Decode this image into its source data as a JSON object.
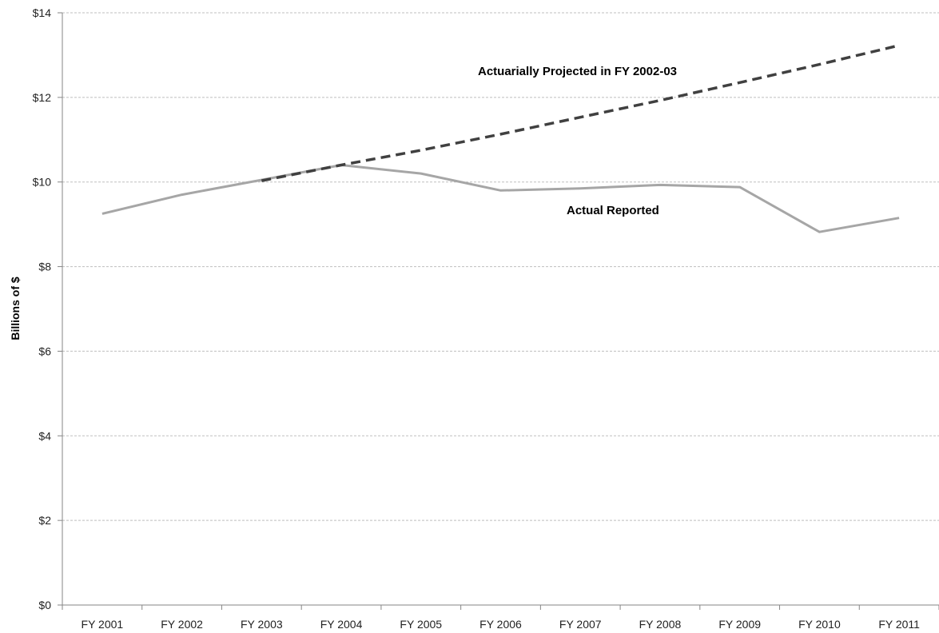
{
  "chart_data": {
    "type": "line",
    "title": "",
    "xlabel": "",
    "ylabel": "Billions of $",
    "categories": [
      "FY 2001",
      "FY 2002",
      "FY 2003",
      "FY 2004",
      "FY 2005",
      "FY 2006",
      "FY 2007",
      "FY 2008",
      "FY 2009",
      "FY 2010",
      "FY 2011"
    ],
    "ylim": [
      0,
      14
    ],
    "yticks": [
      0,
      2,
      4,
      6,
      8,
      10,
      12,
      14
    ],
    "ytick_labels": [
      "$0",
      "$2",
      "$4",
      "$6",
      "$8",
      "$10",
      "$12",
      "$14"
    ],
    "grid": true,
    "series": [
      {
        "name": "Actual Reported",
        "style": "solid",
        "color": "#a6a6a6",
        "values": [
          9.25,
          9.7,
          10.05,
          10.4,
          10.2,
          9.8,
          9.85,
          9.93,
          9.88,
          8.82,
          9.15
        ]
      },
      {
        "name": "Actuarially Projected in FY 2002-03",
        "style": "dashed",
        "color": "#404040",
        "values": [
          null,
          null,
          10.03,
          10.4,
          10.75,
          11.13,
          11.53,
          11.93,
          12.35,
          12.78,
          13.23
        ]
      }
    ]
  }
}
